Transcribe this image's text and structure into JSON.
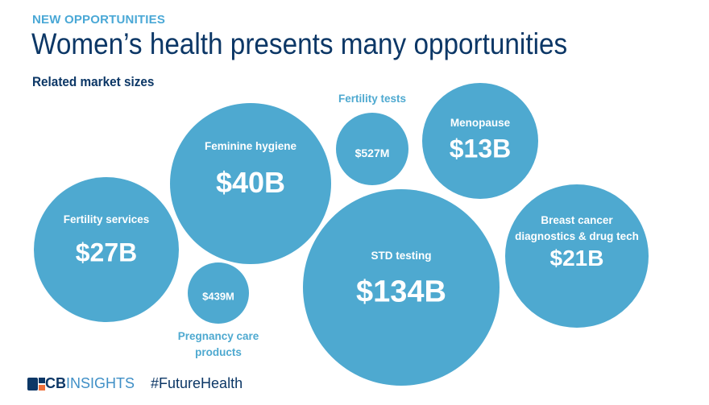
{
  "header": {
    "kicker": "NEW OPPORTUNITIES",
    "title": "Women’s health presents many opportunities",
    "subtitle": "Related market sizes"
  },
  "chart_data": {
    "type": "bubble",
    "unit": "USD",
    "bubble_color": "#4ea9d0",
    "bubbles": [
      {
        "label": "Fertility services",
        "value_label": "$27B",
        "value": 27000000000,
        "label_position": "inside"
      },
      {
        "label": "Feminine hygiene",
        "value_label": "$40B",
        "value": 40000000000,
        "label_position": "inside"
      },
      {
        "label": "Fertility tests",
        "value_label": "$527M",
        "value": 527000000,
        "label_position": "above"
      },
      {
        "label": "Menopause",
        "value_label": "$13B",
        "value": 13000000000,
        "label_position": "inside"
      },
      {
        "label": "STD testing",
        "value_label": "$134B",
        "value": 134000000000,
        "label_position": "inside"
      },
      {
        "label": "Breast cancer diagnostics & drug tech",
        "label_lines": [
          "Breast cancer",
          "diagnostics & drug tech"
        ],
        "value_label": "$21B",
        "value": 21000000000,
        "label_position": "inside"
      },
      {
        "label": "Pregnancy care products",
        "label_lines": [
          "Pregnancy care",
          "products"
        ],
        "value_label": "$439M",
        "value": 439000000,
        "label_position": "below"
      }
    ]
  },
  "footer": {
    "logo_text_bold": "CB",
    "logo_text": "INSIGHTS",
    "hashtag": "#FutureHealth"
  }
}
